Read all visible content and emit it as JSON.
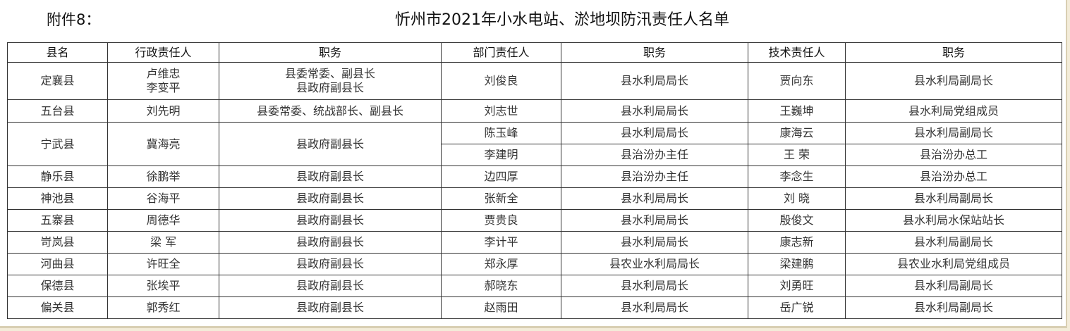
{
  "attachment_label": "附件8：",
  "title": "忻州市2021年小水电站、淤地坝防汛责任人名单",
  "headers": [
    "县名",
    "行政责任人",
    "职务",
    "部门责任人",
    "职务",
    "技术责任人",
    "职务"
  ],
  "rows": [
    {
      "county": "定襄县",
      "admin": "卢维忠",
      "admin2": "李变平",
      "admin_title": "县委常委、副县长",
      "admin_title2": "县政府副县长",
      "dept": "刘俊良",
      "dept_title": "县水利局局长",
      "tech": "贾向东",
      "tech_title": "县水利局副局长"
    },
    {
      "county": "五台县",
      "admin": "刘先明",
      "admin_title": "县委常委、统战部长、副县长",
      "dept": "刘志世",
      "dept_title": "县水利局局长",
      "tech": "王巍坤",
      "tech_title": "县水利局党组成员"
    },
    {
      "county": "宁武县",
      "admin": "冀海亮",
      "admin_title": "县政府副县长",
      "dept": "陈玉峰",
      "dept_title": "县水利局局长",
      "tech": "康海云",
      "tech_title": "县水利局副局长",
      "dept2": "李建明",
      "dept_title2": "县治汾办主任",
      "tech2": "王 荣",
      "tech_title2": "县治汾办总工"
    },
    {
      "county": "静乐县",
      "admin": "徐鹏举",
      "admin_title": "县政府副县长",
      "dept": "边四厚",
      "dept_title": "县治汾办主任",
      "tech": "李念生",
      "tech_title": "县治汾办总工"
    },
    {
      "county": "神池县",
      "admin": "谷海平",
      "admin_title": "县政府副县长",
      "dept": "张新全",
      "dept_title": "县水利局局长",
      "tech": "刘 晓",
      "tech_title": "县水利局副局长"
    },
    {
      "county": "五寨县",
      "admin": "周德华",
      "admin_title": "县政府副县长",
      "dept": "贾贵良",
      "dept_title": "县水利局局长",
      "tech": "殷俊文",
      "tech_title": "县水利局水保站站长"
    },
    {
      "county": "岢岚县",
      "admin": "梁 军",
      "admin_title": "县政府副县长",
      "dept": "李计平",
      "dept_title": "县水利局局长",
      "tech": "康志新",
      "tech_title": "县水利局副局长"
    },
    {
      "county": "河曲县",
      "admin": "许旺全",
      "admin_title": "县政府副县长",
      "dept": "郑永厚",
      "dept_title": "县农业水利局局长",
      "tech": "梁建鹏",
      "tech_title": "县农业水利局党组成员"
    },
    {
      "county": "保德县",
      "admin": "张埃平",
      "admin_title": "县政府副县长",
      "dept": "郝晓东",
      "dept_title": "县水利局局长",
      "tech": "刘勇旺",
      "tech_title": "县水利局副局长"
    },
    {
      "county": "偏关县",
      "admin": "郭秀红",
      "admin_title": "县政府副县长",
      "dept": "赵雨田",
      "dept_title": "县水利局局长",
      "tech": "岳广锐",
      "tech_title": "县水利局副局长"
    }
  ]
}
